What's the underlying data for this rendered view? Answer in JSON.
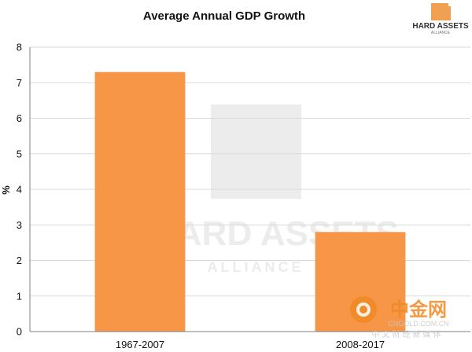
{
  "chart_data": {
    "type": "bar",
    "title": "Average Annual GDP Growth",
    "xlabel": "",
    "ylabel": "%",
    "categories": [
      "1967-2007",
      "2008-2017"
    ],
    "values": [
      7.3,
      2.8
    ],
    "ylim": [
      0,
      8
    ],
    "yticks": [
      0,
      1,
      2,
      3,
      4,
      5,
      6,
      7,
      8
    ],
    "grid": true,
    "legend": false,
    "bar_color": "#F79646"
  },
  "logo": {
    "text": "HARD ASSETS",
    "subtext": "ALLIANCE",
    "color": "#F0A050"
  },
  "watermark": {
    "main": "HARD ASSETS",
    "sub": "ALLIANCE",
    "cn_brand": "中金网",
    "cn_url": "CNGOLD.COM.CN",
    "cn_tagline": "中文财经新媒体"
  },
  "colors": {
    "grid": "#D9D9D9",
    "axis": "#808080",
    "text": "#111111",
    "watermark": "#E6E6E6",
    "cn_orange": "#F08A24"
  }
}
